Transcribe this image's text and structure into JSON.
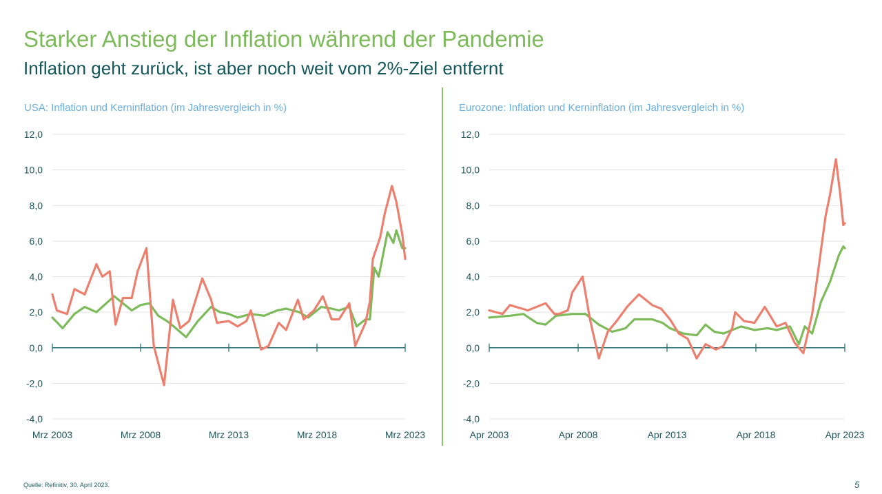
{
  "header": {
    "title": "Starker Anstieg der Inflation während der Pandemie",
    "subtitle": "Inflation geht zurück, ist aber noch weit vom 2%-Ziel entfernt"
  },
  "footer": {
    "source": "Quelle: Refinitiv, 30. April 2023.",
    "page": "5"
  },
  "colors": {
    "headline": "#ec7f6e",
    "core": "#7dbb5a",
    "axis": "#1e6a6a",
    "grid": "#e3e3e3"
  },
  "chart_data": [
    {
      "type": "line",
      "title": "USA: Inflation und Kerninflation (im Jahresvergleich in %)",
      "xlim": [
        "2003-03",
        "2023-03"
      ],
      "ylim": [
        -4,
        12
      ],
      "yticks": [
        "-4,0",
        "-2,0",
        "0,0",
        "2,0",
        "4,0",
        "6,0",
        "8,0",
        "10,0",
        "12,0"
      ],
      "xticks": [
        "Mrz 2003",
        "Mrz 2008",
        "Mrz 2013",
        "Mrz 2018",
        "Mrz 2023"
      ],
      "grid": true,
      "series": [
        {
          "color": "#ec7f6e",
          "x": [
            "2003-03",
            "2003-06",
            "2004-01",
            "2004-06",
            "2005-01",
            "2005-09",
            "2006-01",
            "2006-06",
            "2006-10",
            "2007-03",
            "2007-09",
            "2008-01",
            "2008-07",
            "2008-12",
            "2009-07",
            "2010-01",
            "2010-06",
            "2010-12",
            "2011-09",
            "2012-03",
            "2012-07",
            "2013-03",
            "2013-09",
            "2014-03",
            "2014-06",
            "2015-01",
            "2015-06",
            "2016-01",
            "2016-06",
            "2017-02",
            "2017-06",
            "2018-01",
            "2018-07",
            "2019-01",
            "2019-06",
            "2020-01",
            "2020-05",
            "2020-12",
            "2021-03",
            "2021-05",
            "2021-10",
            "2022-01",
            "2022-06",
            "2022-09",
            "2023-01",
            "2023-03"
          ],
          "y": [
            3.0,
            2.1,
            1.9,
            3.3,
            3.0,
            4.7,
            4.0,
            4.3,
            1.3,
            2.8,
            2.8,
            4.3,
            5.6,
            0.1,
            -2.1,
            2.7,
            1.1,
            1.5,
            3.9,
            2.7,
            1.4,
            1.5,
            1.2,
            1.5,
            2.1,
            -0.1,
            0.1,
            1.4,
            1.0,
            2.7,
            1.6,
            2.1,
            2.9,
            1.6,
            1.6,
            2.5,
            0.1,
            1.4,
            2.6,
            5.0,
            6.2,
            7.5,
            9.1,
            8.2,
            6.4,
            5.0
          ]
        },
        {
          "color": "#7dbb5a",
          "x": [
            "2003-03",
            "2003-10",
            "2004-06",
            "2005-01",
            "2005-09",
            "2006-09",
            "2007-03",
            "2007-09",
            "2008-03",
            "2008-09",
            "2009-03",
            "2009-09",
            "2010-03",
            "2010-10",
            "2011-06",
            "2012-03",
            "2012-09",
            "2013-03",
            "2013-09",
            "2014-06",
            "2015-03",
            "2015-12",
            "2016-06",
            "2017-03",
            "2017-09",
            "2018-06",
            "2019-01",
            "2019-06",
            "2020-01",
            "2020-06",
            "2020-12",
            "2021-03",
            "2021-06",
            "2021-09",
            "2022-03",
            "2022-07",
            "2022-09",
            "2023-01",
            "2023-03"
          ],
          "y": [
            1.7,
            1.1,
            1.9,
            2.3,
            2.0,
            2.9,
            2.5,
            2.1,
            2.4,
            2.5,
            1.8,
            1.5,
            1.1,
            0.6,
            1.5,
            2.3,
            2.0,
            1.9,
            1.7,
            1.9,
            1.8,
            2.1,
            2.2,
            2.0,
            1.7,
            2.3,
            2.2,
            2.1,
            2.3,
            1.2,
            1.6,
            1.6,
            4.5,
            4.0,
            6.5,
            5.9,
            6.6,
            5.6,
            5.6
          ]
        }
      ]
    },
    {
      "type": "line",
      "title": "Eurozone: Inflation und Kerninflation (im Jahresvergleich in %)",
      "xlim": [
        "2003-04",
        "2023-04"
      ],
      "ylim": [
        -4,
        12
      ],
      "yticks": [
        "-4,0",
        "-2,0",
        "0,0",
        "2,0",
        "4,0",
        "6,0",
        "8,0",
        "10,0",
        "12,0"
      ],
      "xticks": [
        "Apr 2003",
        "Apr 2008",
        "Apr 2013",
        "Apr 2018",
        "Apr 2023"
      ],
      "grid": true,
      "series": [
        {
          "color": "#ec7f6e",
          "x": [
            "2003-04",
            "2004-01",
            "2004-06",
            "2005-06",
            "2006-06",
            "2006-12",
            "2007-03",
            "2007-09",
            "2007-12",
            "2008-07",
            "2008-12",
            "2009-06",
            "2009-12",
            "2010-06",
            "2011-01",
            "2011-09",
            "2012-06",
            "2012-12",
            "2013-06",
            "2013-12",
            "2014-06",
            "2014-12",
            "2015-06",
            "2016-01",
            "2016-06",
            "2016-12",
            "2017-02",
            "2017-08",
            "2018-03",
            "2018-10",
            "2019-06",
            "2019-12",
            "2020-06",
            "2020-12",
            "2021-06",
            "2021-11",
            "2022-03",
            "2022-06",
            "2022-10",
            "2023-01",
            "2023-03",
            "2023-04"
          ],
          "y": [
            2.1,
            1.9,
            2.4,
            2.1,
            2.5,
            1.9,
            1.9,
            2.1,
            3.1,
            4.0,
            1.6,
            -0.6,
            0.9,
            1.5,
            2.3,
            3.0,
            2.4,
            2.2,
            1.6,
            0.8,
            0.5,
            -0.6,
            0.2,
            -0.1,
            0.1,
            1.1,
            2.0,
            1.5,
            1.4,
            2.3,
            1.2,
            1.4,
            0.3,
            -0.3,
            1.9,
            4.9,
            7.4,
            8.6,
            10.6,
            8.6,
            6.9,
            7.0
          ]
        },
        {
          "color": "#7dbb5a",
          "x": [
            "2003-04",
            "2004-06",
            "2005-03",
            "2005-12",
            "2006-06",
            "2007-01",
            "2007-12",
            "2008-09",
            "2009-06",
            "2010-03",
            "2010-12",
            "2011-06",
            "2012-06",
            "2013-01",
            "2013-06",
            "2014-03",
            "2014-12",
            "2015-06",
            "2015-12",
            "2016-06",
            "2017-06",
            "2018-03",
            "2018-12",
            "2019-06",
            "2020-03",
            "2020-09",
            "2021-01",
            "2021-06",
            "2021-12",
            "2022-06",
            "2022-12",
            "2023-03",
            "2023-04"
          ],
          "y": [
            1.7,
            1.8,
            1.9,
            1.4,
            1.3,
            1.8,
            1.9,
            1.9,
            1.3,
            0.9,
            1.1,
            1.6,
            1.6,
            1.4,
            1.1,
            0.8,
            0.7,
            1.3,
            0.9,
            0.8,
            1.2,
            1.0,
            1.1,
            1.0,
            1.2,
            0.2,
            1.2,
            0.8,
            2.6,
            3.7,
            5.2,
            5.7,
            5.6
          ]
        }
      ]
    }
  ]
}
